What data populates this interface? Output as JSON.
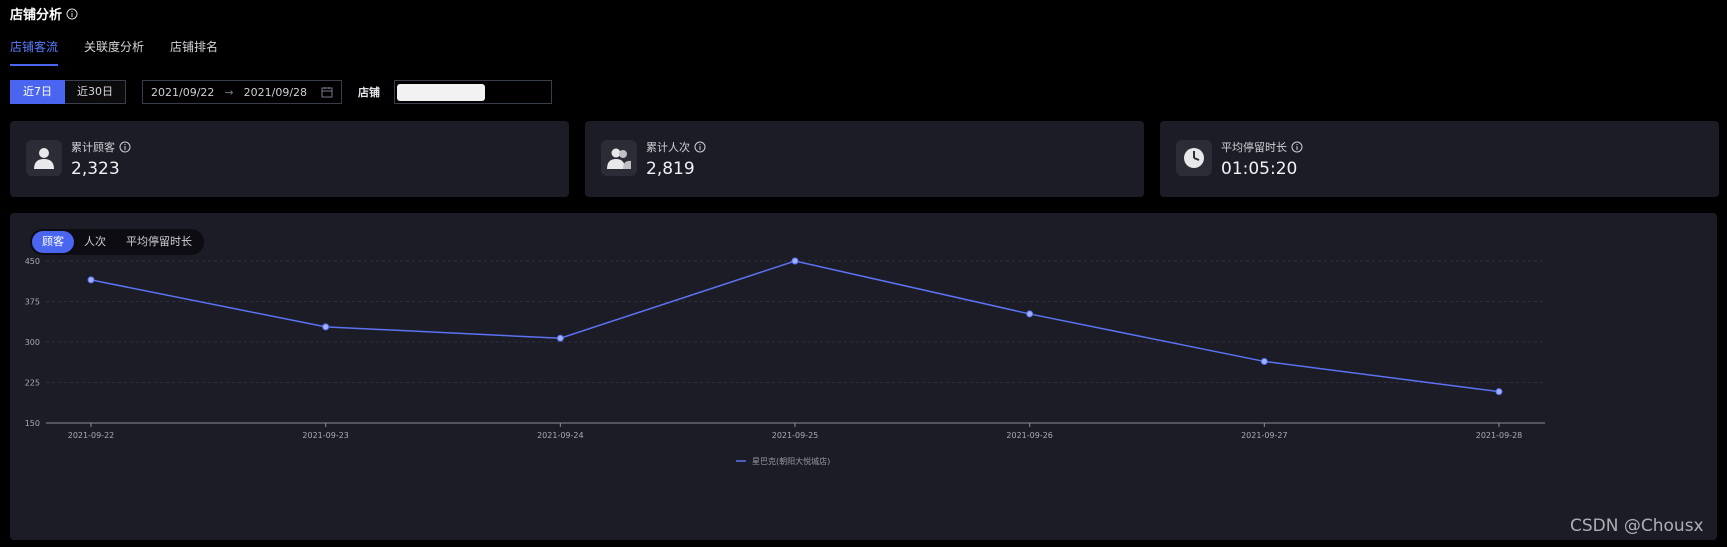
{
  "page": {
    "title": "店铺分析"
  },
  "tabs": [
    {
      "label": "店铺客流"
    },
    {
      "label": "关联度分析"
    },
    {
      "label": "店铺排名"
    }
  ],
  "filters": {
    "range_options": [
      {
        "label": "近7日"
      },
      {
        "label": "近30日"
      }
    ],
    "start_date": "2021/09/22",
    "end_date": "2021/09/28",
    "range_arrow": "→",
    "store_label": "店铺"
  },
  "stats": [
    {
      "label": "累计顾客",
      "value": "2,323",
      "icon": "person-icon"
    },
    {
      "label": "累计人次",
      "value": "2,819",
      "icon": "people-icon"
    },
    {
      "label": "平均停留时长",
      "value": "01:05:20",
      "icon": "clock-icon"
    }
  ],
  "metric_tabs": [
    {
      "label": "顾客"
    },
    {
      "label": "人次"
    },
    {
      "label": "平均停留时长"
    }
  ],
  "chart_data": {
    "type": "line",
    "categories": [
      "2021-09-22",
      "2021-09-23",
      "2021-09-24",
      "2021-09-25",
      "2021-09-26",
      "2021-09-27",
      "2021-09-28"
    ],
    "series": [
      {
        "name": "星巴克(朝阳大悦城店)",
        "values": [
          415,
          328,
          307,
          450,
          352,
          264,
          208
        ],
        "color": "#5b72f2"
      }
    ],
    "y_ticks": [
      150,
      225,
      300,
      375,
      450
    ],
    "ylim": [
      150,
      450
    ],
    "grid": true,
    "legend_position": "bottom-center"
  },
  "watermark": "CSDN @Chousx",
  "colors": {
    "accent": "#4a66f0",
    "card": "#1b1c26",
    "line": "#5b72f2"
  }
}
